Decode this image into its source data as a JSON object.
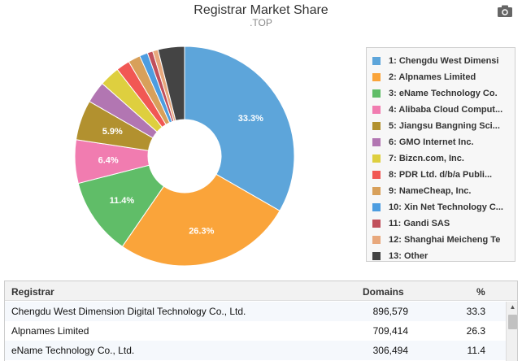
{
  "chart_data": {
    "type": "pie",
    "title": "Registrar Market Share",
    "subtitle": ".TOP",
    "categories": [
      "1: Chengdu West Dimensi",
      "2: Alpnames Limited",
      "3: eName Technology Co.",
      "4: Alibaba Cloud Comput...",
      "5: Jiangsu Bangning Sci...",
      "6: GMO Internet Inc.",
      "7: Bizcn.com, Inc.",
      "8: PDR Ltd. d/b/a Publi...",
      "9: NameCheap, Inc.",
      "10: Xin Net Technology C...",
      "11: Gandi SAS",
      "12: Shanghai Meicheng Te",
      "13: Other"
    ],
    "values": [
      33.3,
      26.3,
      11.4,
      6.4,
      5.9,
      3.2,
      3.0,
      2.0,
      1.8,
      1.2,
      0.8,
      0.8,
      3.9
    ],
    "colors": [
      "#5da5da",
      "#faa43a",
      "#60bd68",
      "#f17cb0",
      "#b2912f",
      "#b276b2",
      "#decf3f",
      "#f15854",
      "#d8a05a",
      "#4d9de0",
      "#c1505c",
      "#e8a87c",
      "#444444"
    ],
    "data_labels": [
      "33.3%",
      "26.3%",
      "11.4%",
      "6.4%",
      "5.9%",
      "",
      "",
      "",
      "",
      "",
      "",
      "",
      ""
    ],
    "legend_position": "right"
  },
  "table": {
    "headers": {
      "registrar": "Registrar",
      "domains": "Domains",
      "percent": "%"
    },
    "rows": [
      {
        "registrar": "Chengdu West Dimension Digital Technology Co., Ltd.",
        "domains": "896,579",
        "percent": "33.3"
      },
      {
        "registrar": "Alpnames Limited",
        "domains": "709,414",
        "percent": "26.3"
      },
      {
        "registrar": "eName Technology Co., Ltd.",
        "domains": "306,494",
        "percent": "11.4"
      }
    ]
  },
  "icons": {
    "export": "camera-icon",
    "scroll_up": "scroll-up-arrow-icon"
  }
}
